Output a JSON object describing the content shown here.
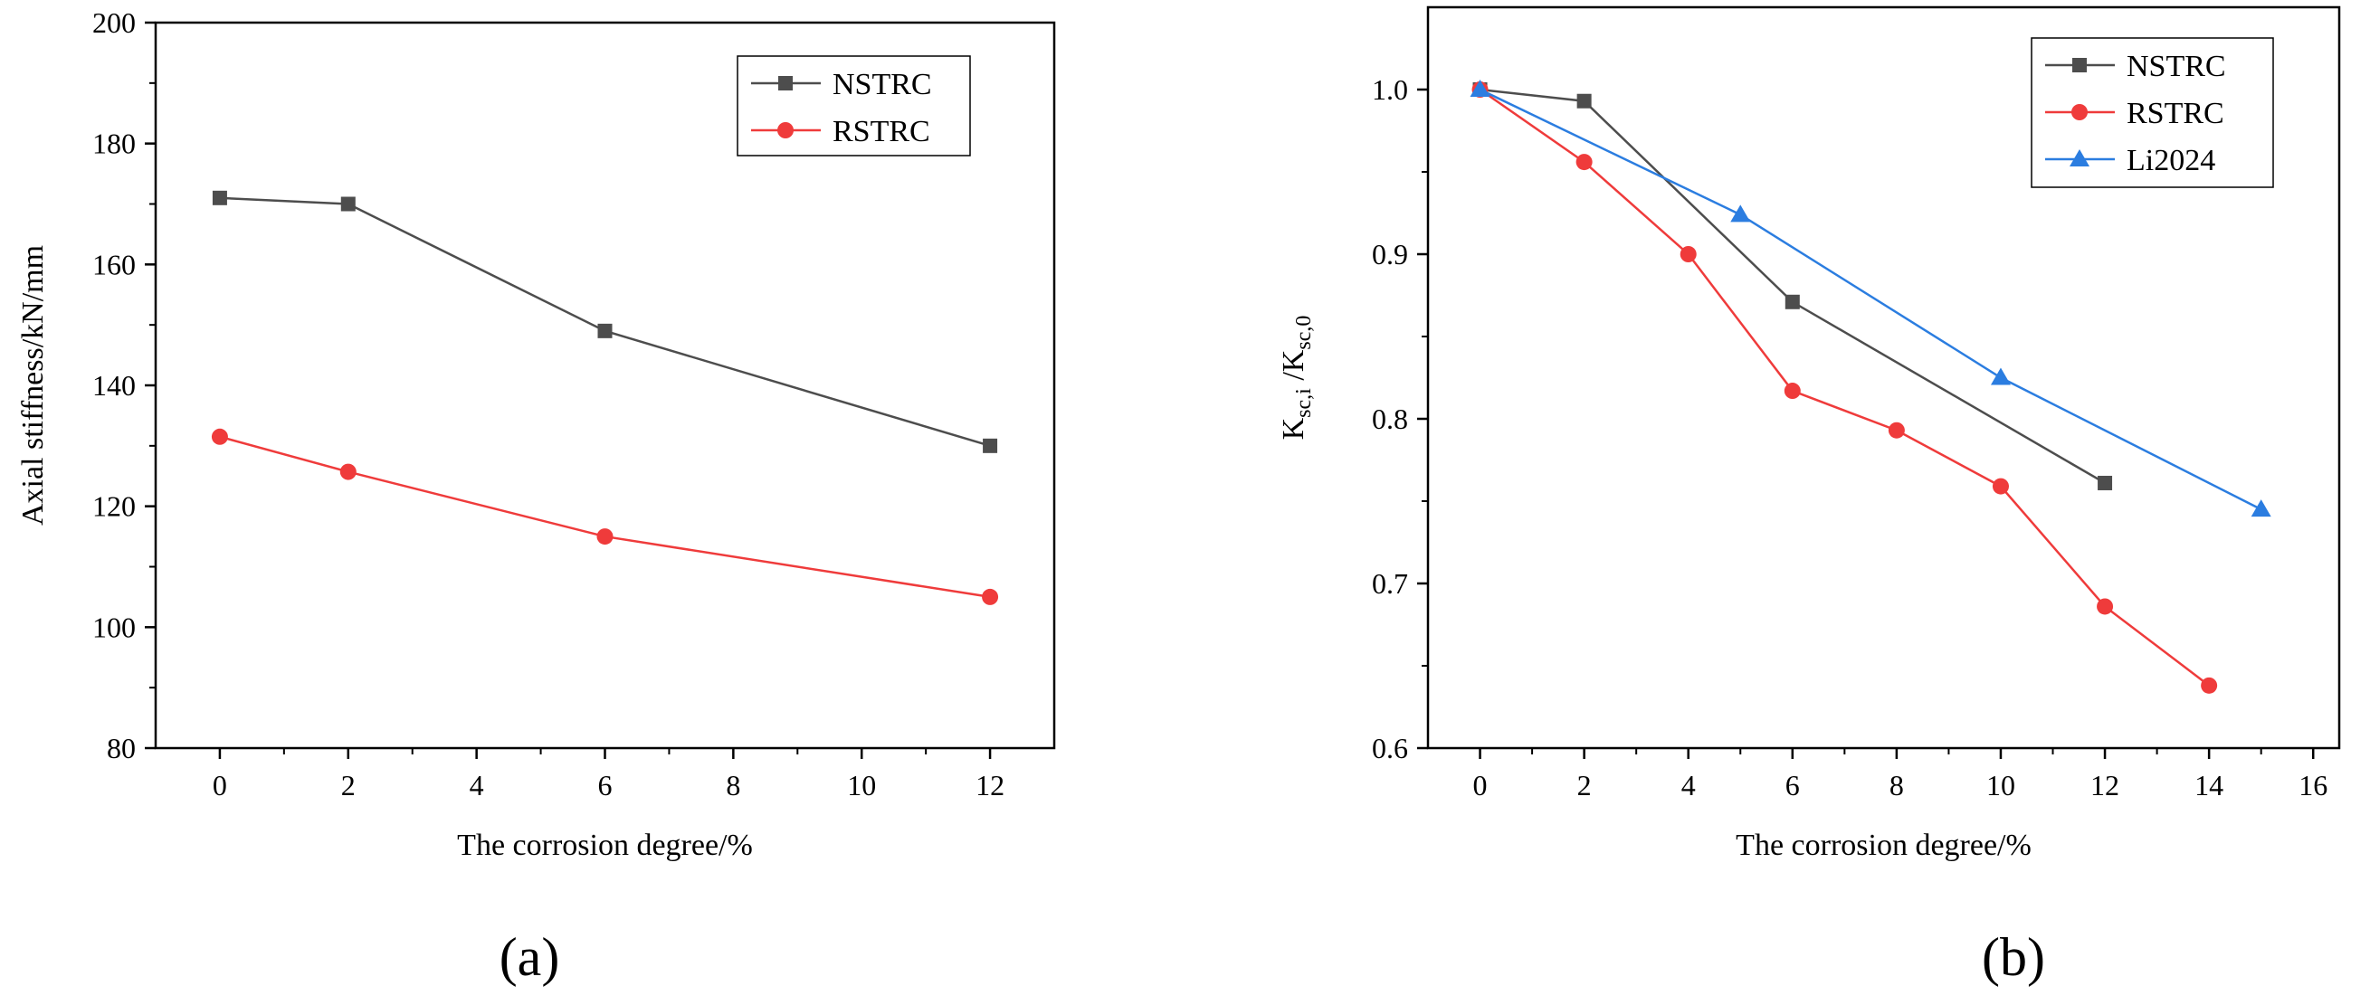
{
  "figure": {
    "panel_labels": [
      "(a)",
      "(b)"
    ]
  },
  "colors": {
    "NSTRC": "#4d4d4d",
    "RSTRC": "#ef3b3b",
    "Li2024": "#2b7de0",
    "axis": "#000000"
  },
  "chart_data": [
    {
      "id": "a",
      "type": "line",
      "title": "",
      "xlabel": "The corrosion degree/%",
      "ylabel": "Axial stiffness/kN/mm",
      "xlim": [
        -1,
        13
      ],
      "ylim": [
        80,
        200
      ],
      "xticks": [
        0,
        2,
        4,
        6,
        8,
        10,
        12
      ],
      "yticks": [
        80,
        100,
        120,
        140,
        160,
        180,
        200
      ],
      "legend_position": "top-right",
      "series": [
        {
          "name": "NSTRC",
          "marker": "square",
          "x": [
            0,
            2,
            6,
            12
          ],
          "y": [
            171,
            170,
            149,
            130
          ]
        },
        {
          "name": "RSTRC",
          "marker": "circle",
          "x": [
            0,
            2,
            6,
            12
          ],
          "y": [
            131.5,
            125.7,
            115,
            105
          ]
        }
      ]
    },
    {
      "id": "b",
      "type": "line",
      "title": "",
      "xlabel": "The corrosion degree/%",
      "ylabel_main": "K",
      "ylabel_sub1": "sc,i",
      "ylabel_slash": " /K",
      "ylabel_sub2": "sc,0",
      "xlim": [
        -1,
        16.5
      ],
      "ylim": [
        0.6,
        1.05
      ],
      "xticks": [
        0,
        2,
        4,
        6,
        8,
        10,
        12,
        14,
        16
      ],
      "yticks": [
        0.6,
        0.7,
        0.8,
        0.9,
        1.0
      ],
      "ytick_labels": [
        "0.6",
        "0.7",
        "0.8",
        "0.9",
        "1.0"
      ],
      "legend_position": "top-right",
      "series": [
        {
          "name": "NSTRC",
          "marker": "square",
          "x": [
            0,
            2,
            6,
            12
          ],
          "y": [
            1.0,
            0.993,
            0.871,
            0.761
          ]
        },
        {
          "name": "RSTRC",
          "marker": "circle",
          "x": [
            0,
            2,
            4,
            6,
            8,
            10,
            12,
            14
          ],
          "y": [
            1.0,
            0.956,
            0.9,
            0.817,
            0.793,
            0.759,
            0.686,
            0.638
          ]
        },
        {
          "name": "Li2024",
          "marker": "triangle",
          "x": [
            0,
            5,
            10,
            15
          ],
          "y": [
            1.0,
            0.924,
            0.825,
            0.745
          ]
        }
      ]
    }
  ]
}
